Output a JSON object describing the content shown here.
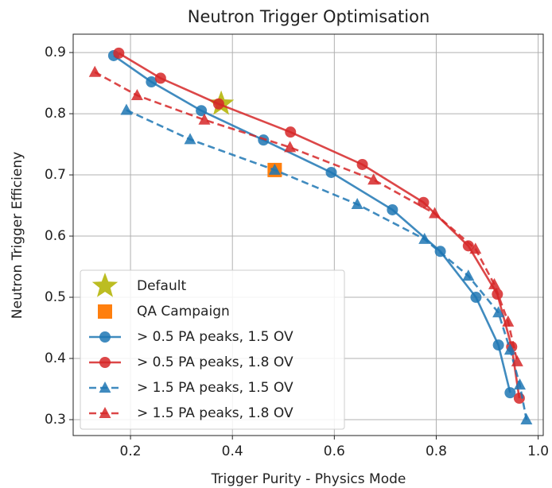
{
  "chart_data": {
    "type": "line",
    "title": "Neutron Trigger Optimisation",
    "x_label": "Trigger Purity - Physics Mode",
    "y_label": "Neutron Trigger Efficieny",
    "xlim": [
      0.0875,
      1.01
    ],
    "ylim": [
      0.274,
      0.93
    ],
    "xticks": [
      0.2,
      0.4,
      0.6,
      0.8,
      {
        "value": 1,
        "label": "1.0"
      }
    ],
    "yticks": [
      0.3,
      0.4,
      0.5,
      0.6,
      0.7,
      0.8,
      0.9
    ],
    "grid": true,
    "legend": "lower left",
    "series": [
      {
        "name": "Default",
        "color": "#bcbd22",
        "marker": "star",
        "linestyle": "none",
        "x": [
          0.378
        ],
        "values": [
          0.816
        ]
      },
      {
        "name": "QA Campaign",
        "color": "#ff7f0e",
        "marker": "square",
        "linestyle": "none",
        "x": [
          0.483
        ],
        "values": [
          0.708
        ]
      },
      {
        "name": "> 0.5 PA peaks, 1.5 OV",
        "color": "#1f77b4",
        "marker": "circle",
        "linestyle": "solid",
        "x": [
          0.167,
          0.241,
          0.339,
          0.461,
          0.594,
          0.714,
          0.808,
          0.878,
          0.922,
          0.945
        ],
        "values": [
          0.895,
          0.852,
          0.805,
          0.757,
          0.704,
          0.643,
          0.575,
          0.5,
          0.422,
          0.344
        ]
      },
      {
        "name": "> 0.5 PA peaks, 1.8 OV",
        "color": "#d62728",
        "marker": "circle",
        "linestyle": "solid",
        "x": [
          0.177,
          0.259,
          0.373,
          0.514,
          0.655,
          0.775,
          0.863,
          0.92,
          0.948,
          0.963
        ],
        "values": [
          0.899,
          0.858,
          0.816,
          0.77,
          0.717,
          0.655,
          0.584,
          0.505,
          0.419,
          0.335
        ]
      },
      {
        "name": "> 1.5 PA peaks, 1.5 OV",
        "color": "#1f77b4",
        "marker": "triangle",
        "linestyle": "dashed",
        "x": [
          0.192,
          0.317,
          0.483,
          0.645,
          0.777,
          0.863,
          0.922,
          0.945,
          0.964,
          0.977
        ],
        "values": [
          0.806,
          0.758,
          0.708,
          0.652,
          0.595,
          0.535,
          0.475,
          0.414,
          0.357,
          0.3
        ]
      },
      {
        "name": "> 1.5 PA peaks, 1.8 OV",
        "color": "#d62728",
        "marker": "triangle",
        "linestyle": "dashed",
        "x": [
          0.13,
          0.213,
          0.345,
          0.513,
          0.677,
          0.797,
          0.877,
          0.914,
          0.941,
          0.959
        ],
        "values": [
          0.868,
          0.83,
          0.79,
          0.745,
          0.692,
          0.637,
          0.579,
          0.521,
          0.46,
          0.395
        ]
      }
    ]
  }
}
